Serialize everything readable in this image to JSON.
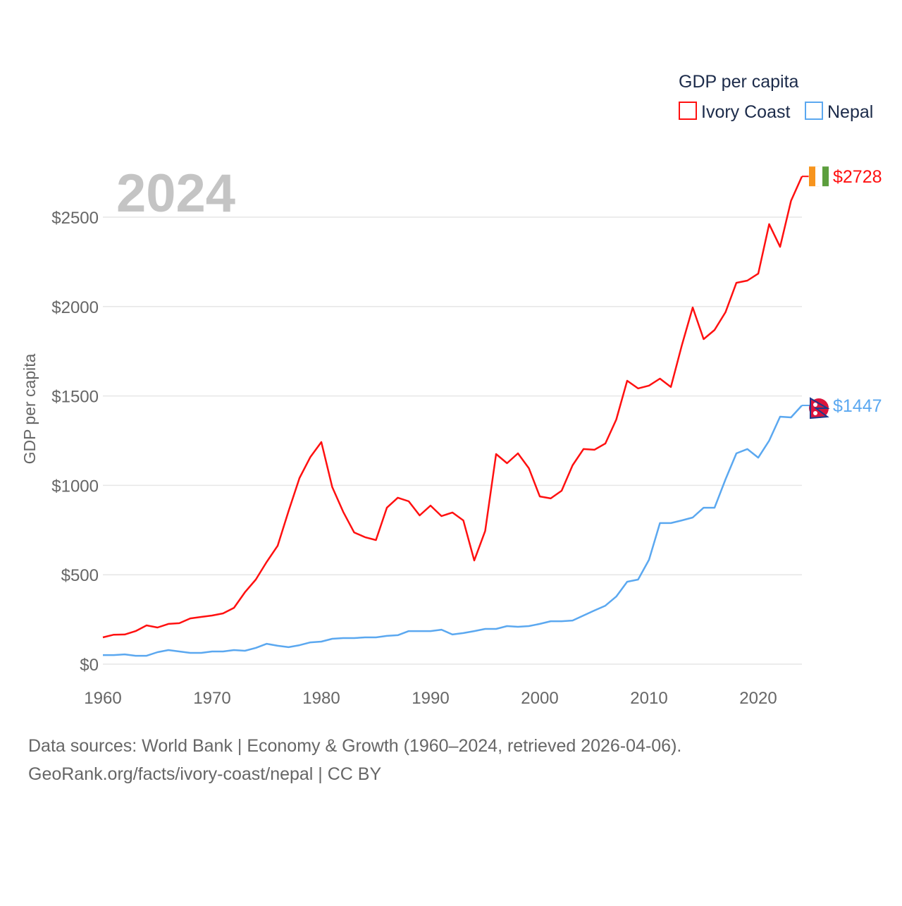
{
  "chart_data": {
    "type": "line",
    "title": "GDP per capita",
    "year_label": "2024",
    "ylabel": "GDP per capita",
    "xlabel": "",
    "ylim": [
      0,
      2750
    ],
    "xlim": [
      1960,
      2024
    ],
    "yticks": [
      0,
      500,
      1000,
      1500,
      2000,
      2500
    ],
    "ytick_labels": [
      "$0",
      "$500",
      "$1000",
      "$1500",
      "$2000",
      "$2500"
    ],
    "xticks": [
      1960,
      1970,
      1980,
      1990,
      2000,
      2010,
      2020
    ],
    "xtick_labels": [
      "1960",
      "1970",
      "1980",
      "1990",
      "2000",
      "2010",
      "2020"
    ],
    "grid": true,
    "legend_position": "top-right",
    "x": [
      1960,
      1961,
      1962,
      1963,
      1964,
      1965,
      1966,
      1967,
      1968,
      1969,
      1970,
      1971,
      1972,
      1973,
      1974,
      1975,
      1976,
      1977,
      1978,
      1979,
      1980,
      1981,
      1982,
      1983,
      1984,
      1985,
      1986,
      1987,
      1988,
      1989,
      1990,
      1991,
      1992,
      1993,
      1994,
      1995,
      1996,
      1997,
      1998,
      1999,
      2000,
      2001,
      2002,
      2003,
      2004,
      2005,
      2006,
      2007,
      2008,
      2009,
      2010,
      2011,
      2012,
      2013,
      2014,
      2015,
      2016,
      2017,
      2018,
      2019,
      2020,
      2021,
      2022,
      2023,
      2024
    ],
    "series": [
      {
        "name": "Ivory Coast",
        "color": "#ff1010",
        "end_label": "$2728",
        "values": [
          150,
          165,
          166,
          185,
          217,
          205,
          225,
          229,
          256,
          264,
          272,
          284,
          315,
          402,
          473,
          572,
          662,
          856,
          1041,
          1159,
          1242,
          990,
          852,
          737,
          710,
          694,
          875,
          931,
          911,
          832,
          887,
          828,
          848,
          804,
          580,
          745,
          1175,
          1124,
          1179,
          1096,
          938,
          927,
          970,
          1112,
          1203,
          1199,
          1234,
          1368,
          1585,
          1542,
          1558,
          1597,
          1550,
          1782,
          1995,
          1818,
          1869,
          1968,
          2133,
          2145,
          2184,
          2461,
          2334,
          2591,
          2728
        ]
      },
      {
        "name": "Nepal",
        "color": "#5ba8f0",
        "end_label": "$1447",
        "values": [
          51,
          51,
          55,
          47,
          47,
          67,
          79,
          71,
          63,
          63,
          71,
          71,
          79,
          75,
          91,
          114,
          103,
          95,
          106,
          122,
          126,
          142,
          146,
          146,
          150,
          150,
          158,
          162,
          185,
          185,
          185,
          193,
          166,
          174,
          185,
          197,
          197,
          213,
          209,
          213,
          225,
          240,
          240,
          244,
          272,
          300,
          327,
          378,
          461,
          473,
          584,
          789,
          789,
          804,
          820,
          875,
          875,
          1033,
          1179,
          1203,
          1155,
          1250,
          1384,
          1380,
          1447
        ]
      }
    ]
  },
  "footer": {
    "line1": "Data sources: World Bank | Economy & Growth (1960–2024, retrieved 2026-04-06).",
    "line2": "GeoRank.org/facts/ivory-coast/nepal | CC BY"
  }
}
